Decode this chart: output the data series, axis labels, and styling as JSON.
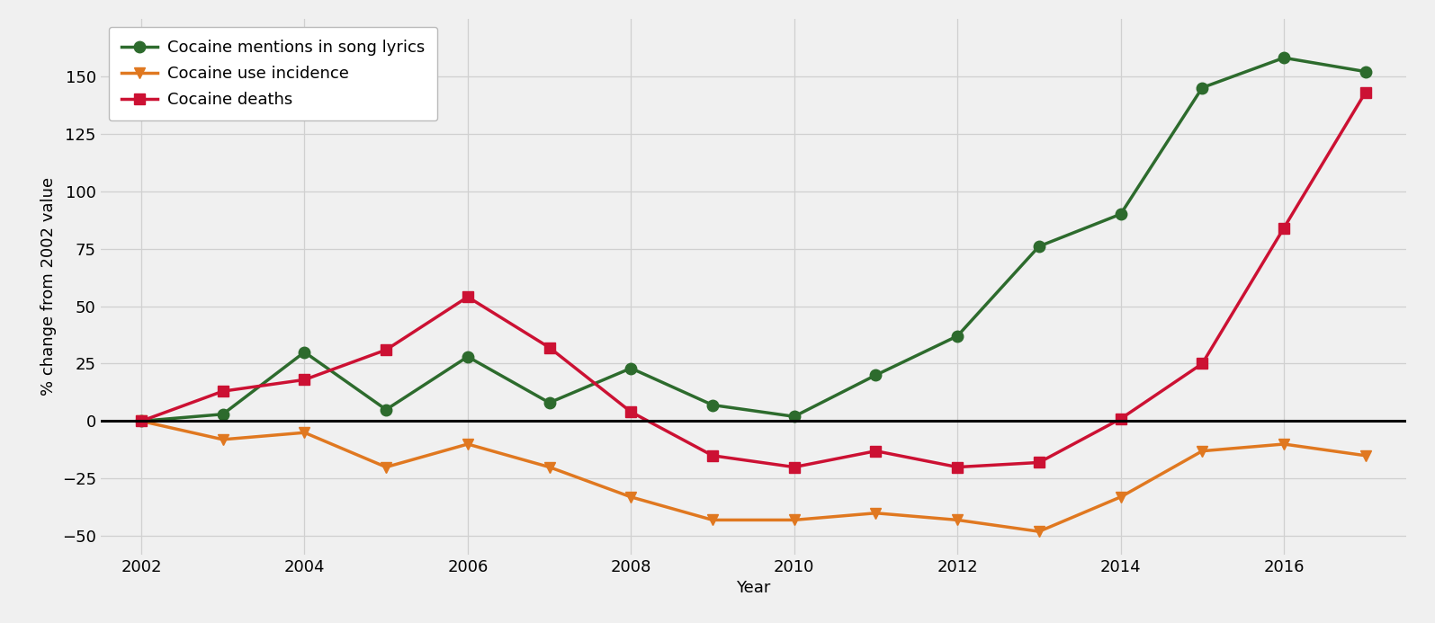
{
  "years": [
    2002,
    2003,
    2004,
    2005,
    2006,
    2007,
    2008,
    2009,
    2010,
    2011,
    2012,
    2013,
    2014,
    2015,
    2016,
    2017
  ],
  "lyrics": [
    0,
    3,
    30,
    5,
    28,
    8,
    23,
    7,
    2,
    20,
    37,
    76,
    90,
    145,
    158,
    152
  ],
  "incidence": [
    0,
    -8,
    -5,
    -20,
    -10,
    -20,
    -33,
    -43,
    -43,
    -40,
    -43,
    -48,
    -33,
    -13,
    -10,
    -15
  ],
  "deaths": [
    0,
    13,
    18,
    31,
    54,
    32,
    4,
    -15,
    -20,
    -13,
    -20,
    -18,
    1,
    25,
    84,
    143
  ],
  "lyrics_color": "#2d6b2d",
  "incidence_color": "#e07820",
  "deaths_color": "#cc1133",
  "hline_color": "#000000",
  "bg_color": "#f0f0f0",
  "grid_color": "#d0d0d0",
  "ylabel": "% change from 2002 value",
  "xlabel": "Year",
  "legend_labels": [
    "Cocaine mentions in song lyrics",
    "Cocaine use incidence",
    "Cocaine deaths"
  ],
  "ylim": [
    -58,
    175
  ],
  "yticks": [
    -50,
    -25,
    0,
    25,
    50,
    75,
    100,
    125,
    150
  ],
  "xticks": [
    2002,
    2004,
    2006,
    2008,
    2010,
    2012,
    2014,
    2016
  ],
  "xlim": [
    2001.5,
    2017.5
  ],
  "marker_lyrics": "o",
  "marker_incidence": "v",
  "marker_deaths": "s",
  "linewidth": 2.5,
  "markersize": 9,
  "legend_fontsize": 13,
  "axis_fontsize": 13,
  "tick_fontsize": 13
}
